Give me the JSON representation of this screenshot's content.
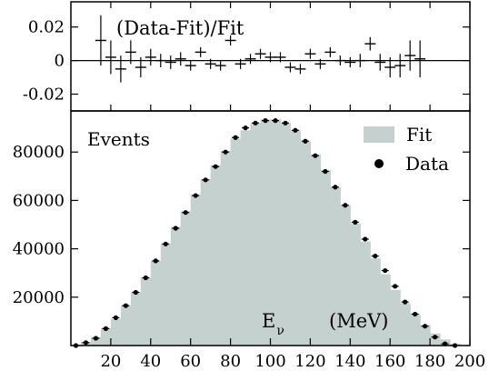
{
  "chart_data": [
    {
      "type": "scatter",
      "panel": "ratio",
      "title": "(Data-Fit)/Fit",
      "xlim": [
        0,
        200
      ],
      "ylim": [
        -0.03,
        0.035
      ],
      "yticks": [
        0.02,
        0,
        -0.02
      ],
      "ytick_labels": [
        "0.02",
        "0",
        "-0.02"
      ],
      "reference_line": 0,
      "series": [
        {
          "x": [
            15,
            20,
            25,
            30,
            35,
            40,
            45,
            50,
            55,
            60,
            65,
            70,
            75,
            80,
            85,
            90,
            95,
            100,
            105,
            110,
            115,
            120,
            125,
            130,
            135,
            140,
            145,
            150,
            155,
            160,
            165,
            170,
            175
          ],
          "y": [
            0.012,
            0.002,
            -0.005,
            0.005,
            -0.004,
            0.002,
            0.0,
            -0.001,
            0.001,
            -0.003,
            0.005,
            -0.002,
            -0.003,
            0.012,
            -0.002,
            0.001,
            0.004,
            0.002,
            0.002,
            -0.004,
            -0.005,
            0.004,
            -0.002,
            0.005,
            0.0,
            -0.001,
            0.0,
            0.01,
            -0.001,
            -0.004,
            -0.003,
            0.003,
            0.001
          ],
          "yerr": [
            0.015,
            0.01,
            0.008,
            0.007,
            0.006,
            0.005,
            0.004,
            0.004,
            0.004,
            0.003,
            0.003,
            0.003,
            0.003,
            0.003,
            0.003,
            0.003,
            0.003,
            0.003,
            0.003,
            0.003,
            0.003,
            0.003,
            0.003,
            0.003,
            0.003,
            0.003,
            0.004,
            0.004,
            0.005,
            0.006,
            0.007,
            0.009,
            0.011
          ]
        }
      ]
    },
    {
      "type": "bar",
      "panel": "main",
      "ylabel": "Events",
      "xlabel": "E",
      "xlabel_sub": "ν",
      "xlabel_unit": "(MeV)",
      "xlim": [
        0,
        200
      ],
      "ylim": [
        0,
        97000
      ],
      "xticks": [
        20,
        40,
        60,
        80,
        100,
        120,
        140,
        160,
        180,
        200
      ],
      "yticks": [
        20000,
        40000,
        60000,
        80000
      ],
      "legend": {
        "placement": "top-right",
        "entries": [
          "Fit",
          "Data"
        ]
      },
      "colors": {
        "fit": "#c5d1cf",
        "data": "#000000"
      },
      "fit": {
        "x": [
          0,
          5,
          10,
          15,
          20,
          25,
          30,
          35,
          40,
          45,
          50,
          55,
          60,
          65,
          70,
          75,
          80,
          85,
          90,
          95,
          100,
          105,
          110,
          115,
          120,
          125,
          130,
          135,
          140,
          145,
          150,
          155,
          160,
          165,
          170,
          175,
          180,
          185,
          190,
          195
        ],
        "values": [
          200,
          1500,
          3500,
          7000,
          11000,
          16500,
          22000,
          28000,
          35000,
          42000,
          49000,
          55500,
          62500,
          68800,
          74500,
          80500,
          85500,
          89000,
          92000,
          93500,
          93500,
          92000,
          89000,
          84500,
          79000,
          72500,
          65500,
          58000,
          50500,
          43000,
          36000,
          29500,
          23000,
          17500,
          13000,
          8500,
          5000,
          2500,
          800,
          200
        ]
      },
      "data": {
        "x": [
          2.5,
          7.5,
          12.5,
          17.5,
          22.5,
          27.5,
          32.5,
          37.5,
          42.5,
          47.5,
          52.5,
          57.5,
          62.5,
          67.5,
          72.5,
          77.5,
          82.5,
          87.5,
          92.5,
          97.5,
          102.5,
          107.5,
          112.5,
          117.5,
          122.5,
          127.5,
          132.5,
          137.5,
          142.5,
          147.5,
          152.5,
          157.5,
          162.5,
          167.5,
          172.5,
          177.5,
          182.5,
          187.5,
          192.5
        ],
        "y": [
          0,
          1200,
          3000,
          7000,
          11500,
          16500,
          22000,
          28000,
          35000,
          42000,
          48500,
          55000,
          62000,
          68500,
          74000,
          80000,
          86000,
          90000,
          92000,
          93000,
          93000,
          92000,
          89000,
          84500,
          78500,
          72000,
          65500,
          58000,
          51000,
          44000,
          37000,
          31000,
          24500,
          18000,
          13000,
          8000,
          3500,
          700,
          0
        ]
      }
    }
  ]
}
